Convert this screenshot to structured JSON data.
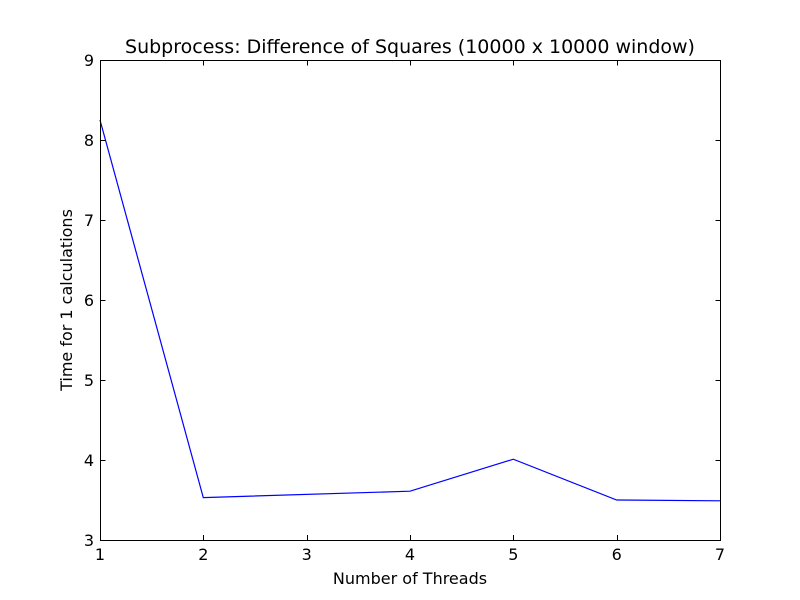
{
  "chart_data": {
    "type": "line",
    "title": "Subprocess: Difference of Squares (10000 x 10000 window)",
    "xlabel": "Number of Threads",
    "ylabel": "Time for 1 calculations",
    "xlim": [
      1,
      7
    ],
    "ylim": [
      3,
      9
    ],
    "xticks": [
      1,
      2,
      3,
      4,
      5,
      6,
      7
    ],
    "yticks": [
      3,
      4,
      5,
      6,
      7,
      8,
      9
    ],
    "grid": false,
    "series": [
      {
        "color": "#0000ff",
        "x": [
          1,
          2,
          4,
          5,
          6,
          7
        ],
        "y": [
          8.25,
          3.53,
          3.61,
          4.01,
          3.5,
          3.49
        ]
      }
    ]
  }
}
